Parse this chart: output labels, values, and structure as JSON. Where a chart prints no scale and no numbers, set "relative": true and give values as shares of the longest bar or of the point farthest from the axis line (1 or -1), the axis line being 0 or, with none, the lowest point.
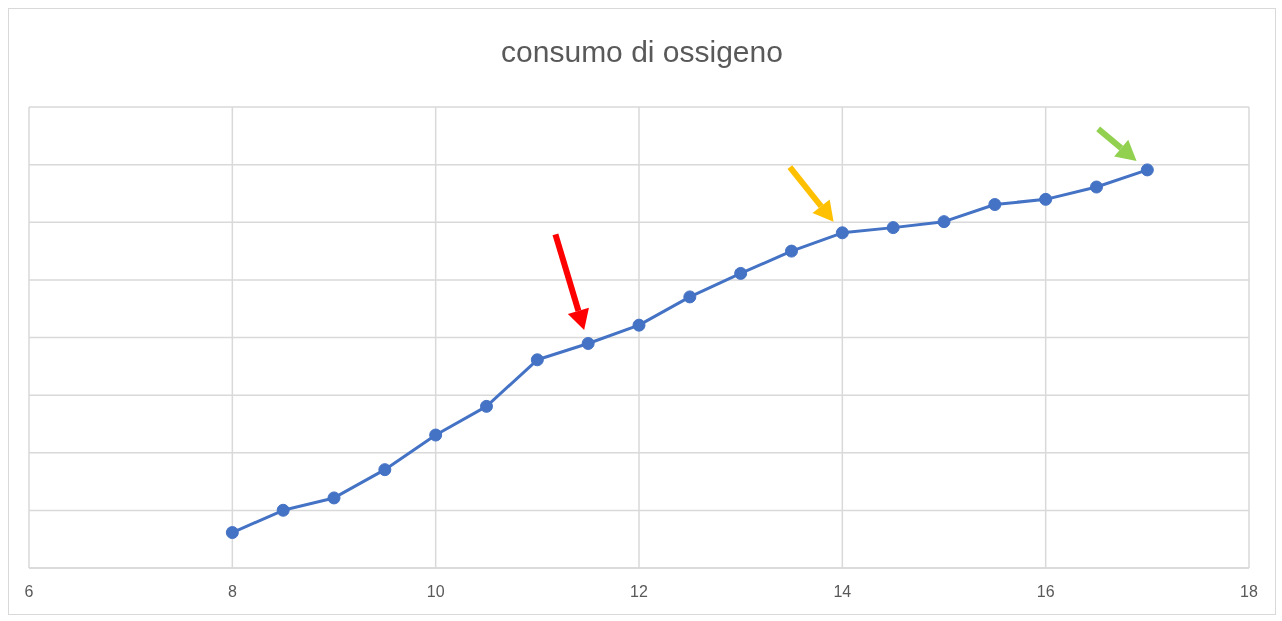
{
  "chart_data": {
    "type": "line",
    "title": "consumo di ossigeno",
    "relative": true,
    "x": [
      8,
      8.5,
      9,
      9.5,
      10,
      10.5,
      11,
      11.5,
      12,
      12.5,
      13,
      13.5,
      14,
      14.5,
      15,
      15.5,
      16,
      16.5,
      17
    ],
    "series": [
      {
        "color": "#4472c4",
        "values": [
          0.089,
          0.145,
          0.176,
          0.247,
          0.334,
          0.406,
          0.523,
          0.564,
          0.61,
          0.681,
          0.74,
          0.796,
          0.842,
          0.855,
          0.87,
          0.913,
          0.926,
          0.957,
          1
        ]
      }
    ],
    "xlim": [
      6,
      18
    ],
    "xticks": [
      6,
      8,
      10,
      12,
      14,
      16,
      18
    ],
    "grid": true,
    "marker": "circle",
    "line_style": "solid"
  }
}
